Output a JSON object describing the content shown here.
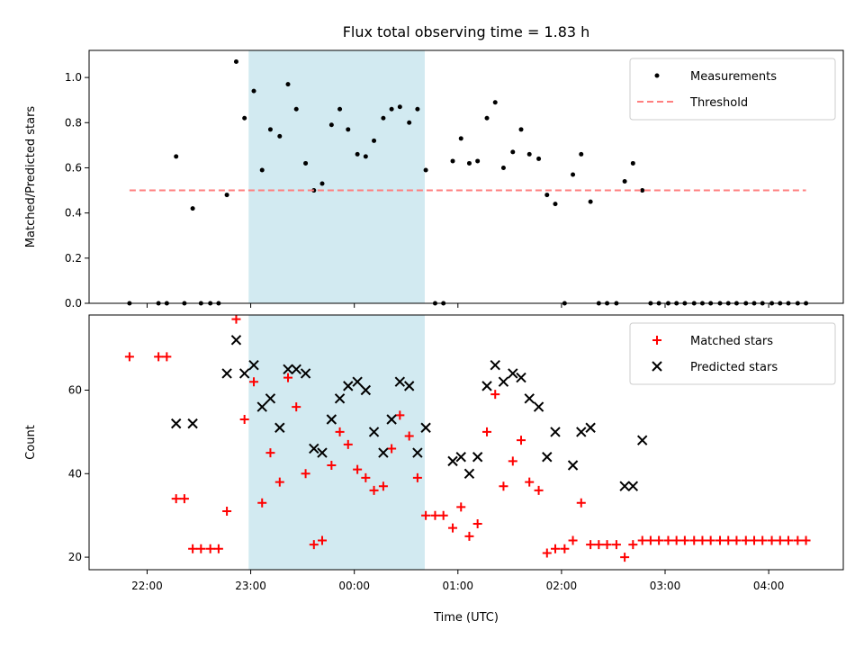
{
  "title": "Flux total observing time = 1.83 h",
  "chart_data": [
    {
      "type": "scatter",
      "ylabel": "Matched/Predicted stars",
      "ylim": [
        0,
        1.12
      ],
      "yticks": [
        0.0,
        0.2,
        0.4,
        0.6,
        0.8,
        1.0
      ],
      "ytick_labels": [
        "0.0",
        "0.2",
        "0.4",
        "0.6",
        "0.8",
        "1.0"
      ],
      "xlim": [
        21.44,
        28.72
      ],
      "shaded_span": {
        "from": "22:59",
        "to": "00:40",
        "x0": 22.98,
        "x1": 24.68,
        "color": "#add8e6"
      },
      "legend_position": "top-right",
      "series": [
        {
          "name": "Measurements",
          "kind": "points",
          "color": "#000000",
          "x": [
            21.83,
            22.11,
            22.19,
            22.28,
            22.36,
            22.44,
            22.52,
            22.61,
            22.69,
            22.77,
            22.86,
            22.94,
            23.03,
            23.11,
            23.19,
            23.28,
            23.36,
            23.44,
            23.53,
            23.61,
            23.69,
            23.78,
            23.86,
            23.94,
            24.03,
            24.11,
            24.19,
            24.28,
            24.36,
            24.44,
            24.53,
            24.61,
            24.69,
            24.78,
            24.86,
            24.95,
            25.03,
            25.11,
            25.19,
            25.28,
            25.36,
            25.44,
            25.53,
            25.61,
            25.69,
            25.78,
            25.86,
            25.94,
            26.03,
            26.11,
            26.19,
            26.28,
            26.36,
            26.44,
            26.53,
            26.61,
            26.69,
            26.78,
            26.86,
            26.94,
            27.03,
            27.11,
            27.19,
            27.28,
            27.36,
            27.44,
            27.53,
            27.61,
            27.69,
            27.78,
            27.86,
            27.94,
            28.03,
            28.11,
            28.19,
            28.28,
            28.36
          ],
          "y": [
            0.0,
            0.0,
            0.0,
            0.65,
            0.0,
            0.42,
            0.0,
            0.0,
            0.0,
            0.48,
            1.07,
            0.82,
            0.94,
            0.59,
            0.77,
            0.74,
            0.97,
            0.86,
            0.62,
            0.5,
            0.53,
            0.79,
            0.86,
            0.77,
            0.66,
            0.65,
            0.72,
            0.82,
            0.86,
            0.87,
            0.8,
            0.86,
            0.59,
            0.0,
            0.0,
            0.63,
            0.73,
            0.62,
            0.63,
            0.82,
            0.89,
            0.6,
            0.67,
            0.77,
            0.66,
            0.64,
            0.48,
            0.44,
            0.0,
            0.57,
            0.66,
            0.45,
            0.0,
            0.0,
            0.0,
            0.54,
            0.62,
            0.5,
            0.0,
            0.0,
            0.0,
            0.0,
            0.0,
            0.0,
            0.0,
            0.0,
            0.0,
            0.0,
            0.0,
            0.0,
            0.0,
            0.0,
            0.0,
            0.0,
            0.0,
            0.0,
            0.0
          ]
        },
        {
          "name": "Threshold",
          "kind": "dashed-line",
          "color": "#ff7f7f",
          "x": [
            21.83,
            28.36
          ],
          "y": [
            0.5,
            0.5
          ]
        }
      ]
    },
    {
      "type": "scatter",
      "ylabel": "Count",
      "xlabel": "Time (UTC)",
      "ylim": [
        17,
        78
      ],
      "yticks": [
        20,
        40,
        60
      ],
      "ytick_labels": [
        "20",
        "40",
        "60"
      ],
      "xlim": [
        21.44,
        28.72
      ],
      "xticks": [
        22,
        23,
        24,
        25,
        26,
        27,
        28
      ],
      "xtick_labels": [
        "22:00",
        "23:00",
        "00:00",
        "01:00",
        "02:00",
        "03:00",
        "04:00"
      ],
      "shaded_span": {
        "from": "22:59",
        "to": "00:40",
        "x0": 22.98,
        "x1": 24.68,
        "color": "#add8e6"
      },
      "legend_position": "top-right",
      "series": [
        {
          "name": "Matched stars",
          "kind": "plus",
          "color": "#ff0000",
          "x": [
            21.83,
            22.11,
            22.19,
            22.28,
            22.36,
            22.44,
            22.52,
            22.61,
            22.69,
            22.77,
            22.86,
            22.94,
            23.03,
            23.11,
            23.19,
            23.28,
            23.36,
            23.44,
            23.53,
            23.61,
            23.69,
            23.78,
            23.86,
            23.94,
            24.03,
            24.11,
            24.19,
            24.28,
            24.36,
            24.44,
            24.53,
            24.61,
            24.69,
            24.78,
            24.86,
            24.95,
            25.03,
            25.11,
            25.19,
            25.28,
            25.36,
            25.44,
            25.53,
            25.61,
            25.69,
            25.78,
            25.86,
            25.94,
            26.03,
            26.11,
            26.19,
            26.28,
            26.36,
            26.44,
            26.53,
            26.61,
            26.69,
            26.78,
            26.86,
            26.94,
            27.03,
            27.11,
            27.19,
            27.28,
            27.36,
            27.44,
            27.53,
            27.61,
            27.69,
            27.78,
            27.86,
            27.94,
            28.03,
            28.11,
            28.19,
            28.28,
            28.36
          ],
          "y": [
            68,
            68,
            68,
            34,
            34,
            22,
            22,
            22,
            22,
            31,
            77,
            53,
            62,
            33,
            45,
            38,
            63,
            56,
            40,
            23,
            24,
            42,
            50,
            47,
            41,
            39,
            36,
            37,
            46,
            54,
            49,
            39,
            30,
            30,
            30,
            27,
            32,
            25,
            28,
            50,
            59,
            37,
            43,
            48,
            38,
            36,
            21,
            22,
            22,
            24,
            33,
            23,
            23,
            23,
            23,
            20,
            23,
            24,
            24,
            24,
            24,
            24,
            24,
            24,
            24,
            24,
            24,
            24,
            24,
            24,
            24,
            24,
            24,
            24,
            24,
            24,
            24
          ]
        },
        {
          "name": "Predicted stars",
          "kind": "x",
          "color": "#000000",
          "x": [
            22.28,
            22.44,
            22.77,
            22.86,
            22.94,
            23.03,
            23.11,
            23.19,
            23.28,
            23.36,
            23.44,
            23.53,
            23.61,
            23.69,
            23.78,
            23.86,
            23.94,
            24.03,
            24.11,
            24.19,
            24.28,
            24.36,
            24.44,
            24.53,
            24.61,
            24.69,
            24.95,
            25.03,
            25.11,
            25.19,
            25.28,
            25.36,
            25.44,
            25.53,
            25.61,
            25.69,
            25.78,
            25.86,
            25.94,
            26.11,
            26.19,
            26.28,
            26.61,
            26.69,
            26.78
          ],
          "y": [
            52,
            52,
            64,
            72,
            64,
            66,
            56,
            58,
            51,
            65,
            65,
            64,
            46,
            45,
            53,
            58,
            61,
            62,
            60,
            50,
            45,
            53,
            62,
            61,
            45,
            51,
            43,
            44,
            40,
            44,
            61,
            66,
            62,
            64,
            63,
            58,
            56,
            44,
            50,
            42,
            50,
            51,
            37,
            37,
            48
          ]
        }
      ]
    }
  ]
}
